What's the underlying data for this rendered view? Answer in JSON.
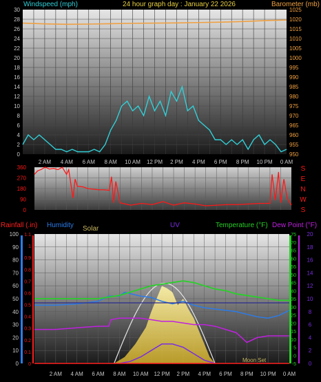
{
  "header": {
    "graph_title": "24 hour graph day : January 22 2026"
  },
  "colors": {
    "background": "#000000",
    "wind": "#30d0d8",
    "barometer": "#f0a040",
    "direction": "#ff1818",
    "rain": "#ff2020",
    "humidity": "#2b7be8",
    "solar_text": "#c8b860",
    "uv": "#7a2de0",
    "temperature": "#28d028",
    "dewpoint": "#c020e0",
    "grid": "#3a3a3a",
    "axis_text": "#c8c8c8"
  },
  "chart_data": [
    {
      "id": "wind_baro",
      "type": "line",
      "title": "24 hour graph day : January 22 2026",
      "left_axis_label": "Windspeed (mph)",
      "right_axis_label": "Barometer (mb)",
      "x_ticks": [
        "2 AM",
        "4 AM",
        "6 AM",
        "8 AM",
        "10 AM",
        "12 PM",
        "2 PM",
        "4 PM",
        "6 PM",
        "8 PM",
        "10 PM",
        "0 AM"
      ],
      "x_range_hours": [
        0,
        24
      ],
      "left_ylim": [
        0,
        30
      ],
      "left_ticks": [
        0,
        2,
        4,
        6,
        8,
        10,
        12,
        14,
        16,
        18,
        20,
        22,
        24,
        26,
        28,
        30
      ],
      "right_ylim": [
        950,
        1025
      ],
      "right_ticks": [
        950,
        955,
        960,
        965,
        970,
        975,
        980,
        985,
        990,
        995,
        1000,
        1005,
        1010,
        1015,
        1020,
        1025
      ],
      "series": [
        {
          "name": "Windspeed",
          "axis": "left",
          "color_key": "wind",
          "x": [
            0,
            0.5,
            1,
            1.5,
            2,
            2.5,
            3,
            3.5,
            4,
            4.5,
            5,
            5.5,
            6,
            6.5,
            7,
            7.5,
            8,
            8.5,
            9,
            9.5,
            10,
            10.5,
            11,
            11.5,
            12,
            12.5,
            13,
            13.5,
            14,
            14.5,
            15,
            15.5,
            16,
            16.5,
            17,
            17.5,
            18,
            18.5,
            19,
            19.5,
            20,
            20.5,
            21,
            21.5,
            22,
            22.5,
            23,
            23.5,
            24
          ],
          "values": [
            2,
            4,
            3,
            4,
            3,
            2,
            1,
            1,
            0.5,
            1,
            0.5,
            0.5,
            0.5,
            1,
            0.5,
            2,
            5,
            7,
            10,
            11,
            9,
            10,
            8,
            12,
            9,
            11,
            8,
            13,
            11,
            14,
            9,
            10,
            7,
            6,
            5,
            3,
            3,
            2,
            3,
            2,
            3,
            1,
            3,
            4,
            2,
            3,
            2,
            0.5,
            1
          ]
        },
        {
          "name": "Barometer",
          "axis": "right",
          "color_key": "barometer",
          "x": [
            0,
            2,
            4,
            6,
            8,
            10,
            12,
            14,
            16,
            18,
            20,
            22,
            24
          ],
          "values": [
            1018,
            1017.6,
            1017.4,
            1017.5,
            1017.7,
            1017.9,
            1018.0,
            1018.1,
            1018.3,
            1018.5,
            1018.8,
            1019.3,
            1019.6
          ]
        }
      ]
    },
    {
      "id": "direction",
      "type": "line",
      "left_ticks": [
        0,
        90,
        180,
        270,
        360
      ],
      "ylim": [
        0,
        360
      ],
      "compass_labels": [
        "S",
        "E",
        "N",
        "W",
        "S"
      ],
      "series": [
        {
          "name": "Wind direction",
          "color_key": "direction",
          "x": [
            0,
            0.3,
            0.6,
            1,
            1.4,
            1.8,
            2.2,
            2.6,
            3,
            3.2,
            3.6,
            3.8,
            4,
            4.5,
            5,
            5.5,
            6,
            6.5,
            7,
            7.2,
            7.4,
            7.6,
            8,
            9,
            10,
            11,
            12,
            13,
            14,
            15,
            16,
            17,
            18,
            19,
            20,
            21,
            22,
            22.2,
            22.5,
            22.8,
            23,
            23.3,
            23.6,
            24
          ],
          "values": [
            300,
            330,
            340,
            360,
            345,
            350,
            340,
            360,
            300,
            340,
            100,
            260,
            200,
            195,
            180,
            175,
            170,
            170,
            165,
            280,
            60,
            240,
            60,
            40,
            55,
            45,
            70,
            40,
            60,
            50,
            35,
            40,
            45,
            45,
            50,
            55,
            55,
            300,
            80,
            320,
            60,
            260,
            100,
            40
          ]
        }
      ]
    },
    {
      "id": "multi",
      "type": "line",
      "series_labels": [
        "Rainfall (.in)",
        "Humidity",
        "Solar",
        "UV",
        "Temperature (°F)",
        "Dew Point (°F)"
      ],
      "moon_label": "Moon Set",
      "axes": {
        "humidity_ticks": [
          0,
          10,
          20,
          30,
          40,
          50,
          60,
          70,
          80,
          90,
          100
        ],
        "rain_ticks": [
          0,
          0.1,
          0.2,
          0.3,
          0.4,
          0.5,
          0.6,
          0.7,
          0.8,
          0.9,
          1,
          1.1
        ],
        "temp_ticks": [
          -5,
          0,
          5,
          10,
          15,
          20,
          25,
          30,
          35,
          40,
          45,
          50,
          55,
          60,
          65,
          70,
          75
        ],
        "uv_ticks": [
          0,
          1,
          2,
          3,
          4,
          5,
          6,
          7,
          8,
          9,
          10,
          11,
          12,
          13,
          14,
          15,
          16,
          17,
          18,
          19,
          20
        ]
      },
      "series": [
        {
          "name": "Humidity",
          "color_key": "humidity",
          "scale": [
            0,
            100
          ],
          "x": [
            0,
            2,
            4,
            6,
            7,
            8,
            8.5,
            9,
            10,
            11,
            12,
            13,
            14,
            15,
            16,
            17,
            18,
            19,
            20,
            21,
            22,
            23,
            24
          ],
          "values": [
            45,
            45,
            46,
            48,
            52,
            52,
            55,
            54,
            52,
            51,
            48,
            46,
            48,
            45,
            43,
            42,
            41,
            40,
            38,
            36,
            35,
            37,
            41
          ]
        },
        {
          "name": "Temperature",
          "color_key": "temperature",
          "scale": [
            -5,
            75
          ],
          "x": [
            0,
            2,
            4,
            6,
            7,
            8,
            9,
            10,
            11,
            12,
            13,
            14,
            15,
            16,
            17,
            18,
            19,
            20,
            21,
            22,
            23,
            24
          ],
          "values": [
            35,
            35,
            35,
            35,
            36,
            37,
            39,
            41,
            43,
            44,
            45,
            46,
            45,
            43,
            41,
            40,
            38,
            37,
            36,
            35,
            34,
            34
          ]
        },
        {
          "name": "Dew Point",
          "color_key": "dewpoint",
          "scale": [
            -5,
            75
          ],
          "x": [
            0,
            2,
            4,
            6,
            7,
            7.2,
            8,
            9,
            10,
            11,
            12,
            13,
            14,
            15,
            16,
            17,
            18,
            19,
            20,
            21,
            22,
            23,
            24
          ],
          "values": [
            16,
            16,
            17,
            18,
            18,
            22,
            23,
            23,
            23,
            22,
            21,
            21,
            20,
            19,
            19,
            18,
            16,
            14,
            8,
            11,
            12,
            12,
            12
          ]
        },
        {
          "name": "Solar",
          "color_key": "solar_text",
          "scale": [
            0,
            100
          ],
          "x": [
            7.5,
            8.5,
            9.5,
            10.5,
            11,
            11.5,
            12,
            12.5,
            13,
            13.5,
            14,
            14.5,
            15,
            15.5,
            16,
            16.5,
            17
          ],
          "values": [
            0,
            5,
            15,
            28,
            40,
            50,
            60,
            58,
            55,
            45,
            50,
            42,
            35,
            25,
            15,
            5,
            0
          ]
        },
        {
          "name": "UV",
          "color_key": "uv",
          "scale": [
            0,
            20
          ],
          "x": [
            8,
            9,
            10,
            11,
            12,
            13,
            14,
            15,
            16,
            17
          ],
          "values": [
            0,
            0.3,
            1,
            2,
            3,
            3,
            2.5,
            1.5,
            0.5,
            0
          ]
        },
        {
          "name": "Rainfall",
          "color_key": "rain",
          "scale": [
            0,
            1.1
          ],
          "x": [
            0,
            24
          ],
          "values": [
            0,
            0
          ]
        }
      ]
    }
  ]
}
